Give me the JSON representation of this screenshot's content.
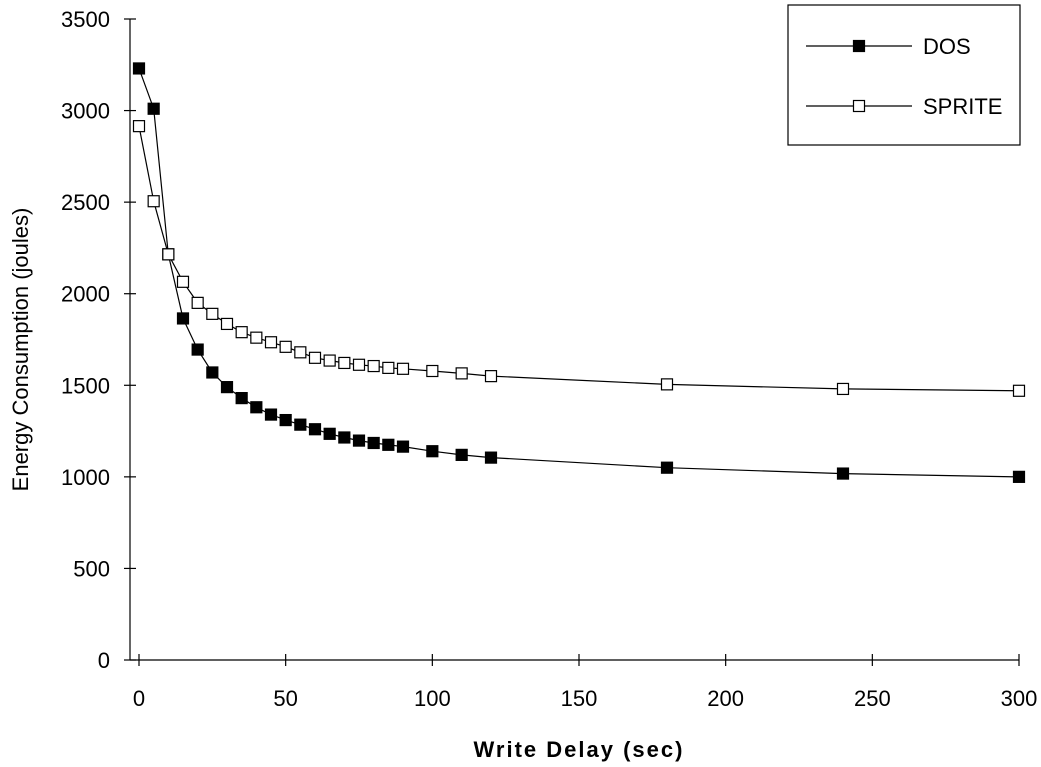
{
  "chart_data": {
    "type": "line",
    "xlabel": "Write Delay (sec)",
    "ylabel": "Energy Consumption (joules)",
    "xlim": [
      0,
      300
    ],
    "ylim": [
      0,
      3500
    ],
    "xticks": [
      0,
      50,
      100,
      150,
      200,
      250,
      300
    ],
    "yticks": [
      0,
      500,
      1000,
      1500,
      2000,
      2500,
      3000,
      3500
    ],
    "grid": false,
    "legend_position": "top-right",
    "x": [
      0,
      5,
      10,
      15,
      20,
      25,
      30,
      35,
      40,
      45,
      50,
      55,
      60,
      65,
      70,
      75,
      80,
      85,
      90,
      100,
      110,
      120,
      180,
      240,
      300
    ],
    "series": [
      {
        "name": "DOS",
        "marker": "filled-square",
        "color": "#000000",
        "values": [
          3230,
          3010,
          2215,
          1865,
          1695,
          1570,
          1490,
          1430,
          1380,
          1340,
          1310,
          1285,
          1260,
          1235,
          1215,
          1198,
          1185,
          1175,
          1165,
          1140,
          1120,
          1105,
          1050,
          1018,
          1000
        ]
      },
      {
        "name": "SPRITE",
        "marker": "open-square",
        "color": "#000000",
        "values": [
          2915,
          2505,
          2215,
          2065,
          1950,
          1890,
          1835,
          1790,
          1760,
          1735,
          1710,
          1680,
          1650,
          1635,
          1622,
          1612,
          1605,
          1595,
          1590,
          1578,
          1565,
          1550,
          1505,
          1480,
          1470
        ]
      }
    ]
  }
}
